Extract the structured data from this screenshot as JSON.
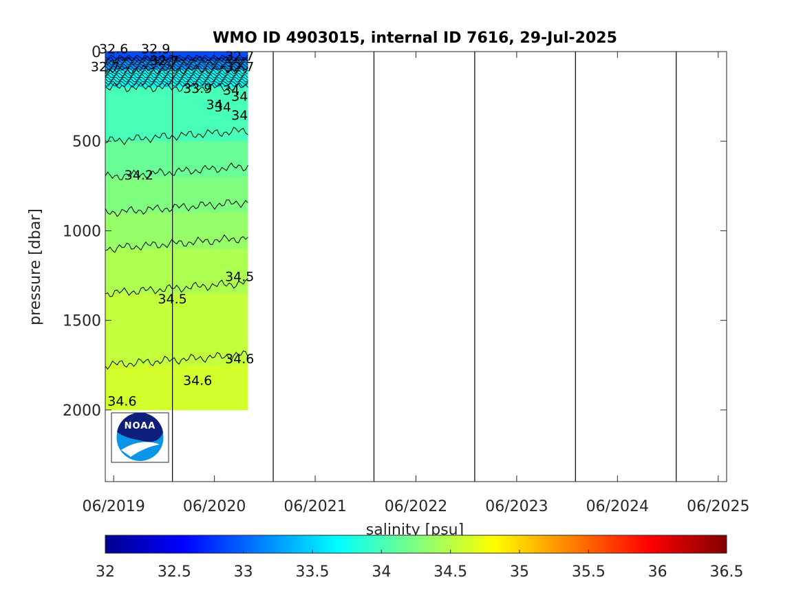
{
  "chart_data": {
    "type": "heatmap",
    "title": "WMO ID 4903015, internal ID 7616, 29-Jul-2025",
    "ylabel": "pressure [dbar]",
    "colorbar_label": "salinity [psu]",
    "x_ticks": [
      "06/2019",
      "06/2020",
      "06/2021",
      "06/2022",
      "06/2023",
      "06/2024",
      "06/2025"
    ],
    "x_range": [
      "2019-05",
      "2025-07"
    ],
    "y_ticks": [
      0,
      500,
      1000,
      1500,
      2000
    ],
    "y_range": [
      2400,
      0
    ],
    "y_reversed": true,
    "data_extent": {
      "x": [
        "2019-05",
        "2020-10"
      ],
      "y_max": 2000
    },
    "colorbar_ticks": [
      32,
      32.5,
      33,
      33.5,
      34,
      34.5,
      35,
      35.5,
      36,
      36.5
    ],
    "colorbar_range": [
      32,
      36.5
    ],
    "colormap": "jet",
    "vertical_lines": [
      "2020-01",
      "2021-01",
      "2022-01",
      "2023-01",
      "2024-01",
      "2025-01"
    ],
    "salinity_layers": [
      {
        "p_top": 0,
        "p_bottom": 50,
        "salinity": 32.9
      },
      {
        "p_top": 50,
        "p_bottom": 100,
        "salinity": 33.2
      },
      {
        "p_top": 100,
        "p_bottom": 200,
        "salinity": 33.7
      },
      {
        "p_top": 200,
        "p_bottom": 500,
        "salinity": 34.0
      },
      {
        "p_top": 500,
        "p_bottom": 700,
        "salinity": 34.15
      },
      {
        "p_top": 700,
        "p_bottom": 900,
        "salinity": 34.25
      },
      {
        "p_top": 900,
        "p_bottom": 1100,
        "salinity": 34.35
      },
      {
        "p_top": 1100,
        "p_bottom": 1350,
        "salinity": 34.45
      },
      {
        "p_top": 1350,
        "p_bottom": 1750,
        "salinity": 34.55
      },
      {
        "p_top": 1750,
        "p_bottom": 2000,
        "salinity": 34.62
      }
    ],
    "contour_labels": [
      {
        "text": "34.2",
        "x": "2019-09",
        "p": 715
      },
      {
        "text": "34.5",
        "x": "2020-01",
        "p": 1405
      },
      {
        "text": "34.5",
        "x": "2020-09",
        "p": 1280
      },
      {
        "text": "34.6",
        "x": "2019-07",
        "p": 1975
      },
      {
        "text": "34.6",
        "x": "2020-04",
        "p": 1860
      },
      {
        "text": "34.6",
        "x": "2020-09",
        "p": 1740
      },
      {
        "text": "34",
        "x": "2020-08",
        "p": 240
      },
      {
        "text": "34",
        "x": "2020-09",
        "p": 275
      },
      {
        "text": "34",
        "x": "2020-06",
        "p": 320
      },
      {
        "text": "34",
        "x": "2020-07",
        "p": 335
      },
      {
        "text": "34",
        "x": "2020-09",
        "p": 380
      },
      {
        "text": "33.9",
        "x": "2020-04",
        "p": 230
      },
      {
        "text": "32.9",
        "x": "2019-11",
        "p": 10
      },
      {
        "text": "32.7",
        "x": "2019-12",
        "p": 75
      },
      {
        "text": "32.7",
        "x": "2020-09",
        "p": 110
      },
      {
        "text": "32.7",
        "x": "2020-09",
        "p": 50
      },
      {
        "text": "32.7",
        "x": "2019-05",
        "p": 110
      },
      {
        "text": "32.6",
        "x": "2019-06",
        "p": 10
      }
    ]
  },
  "logo": {
    "text": "NOAA"
  }
}
